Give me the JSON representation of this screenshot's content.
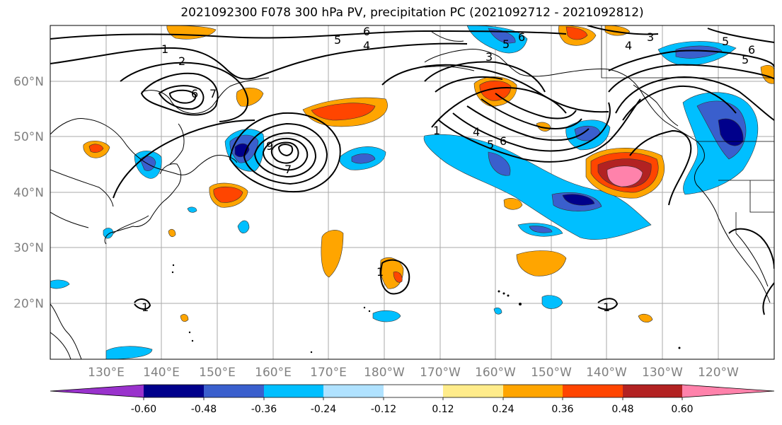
{
  "title": "2021092300 F078 300 hPa PV, precipitation PC (2021092712 - 2021092812)",
  "map": {
    "lat_labels": [
      "60°N",
      "50°N",
      "40°N",
      "30°N",
      "20°N"
    ],
    "lon_labels": [
      "130°E",
      "140°E",
      "150°E",
      "160°E",
      "170°E",
      "180°W",
      "170°W",
      "160°W",
      "150°W",
      "140°W",
      "130°W",
      "120°W"
    ],
    "contour_labels": [
      "1",
      "2",
      "5",
      "6",
      "4",
      "6",
      "5",
      "3",
      "6",
      "3",
      "4",
      "6",
      "5",
      "5",
      "7",
      "9",
      "7",
      "1",
      "4",
      "5",
      "6",
      "1",
      "1",
      "1"
    ]
  },
  "colorbar": {
    "colors": [
      "#9932cc",
      "#00008b",
      "#3a5fcd",
      "#00bfff",
      "#b0e2ff",
      "#ffffff",
      "#ffec8b",
      "#ffa500",
      "#ff4500",
      "#b22222",
      "#ff82ab"
    ],
    "tick_labels": [
      "-0.60",
      "-0.48",
      "-0.36",
      "-0.24",
      "-0.12",
      "0.12",
      "0.24",
      "0.36",
      "0.48",
      "0.60"
    ]
  }
}
